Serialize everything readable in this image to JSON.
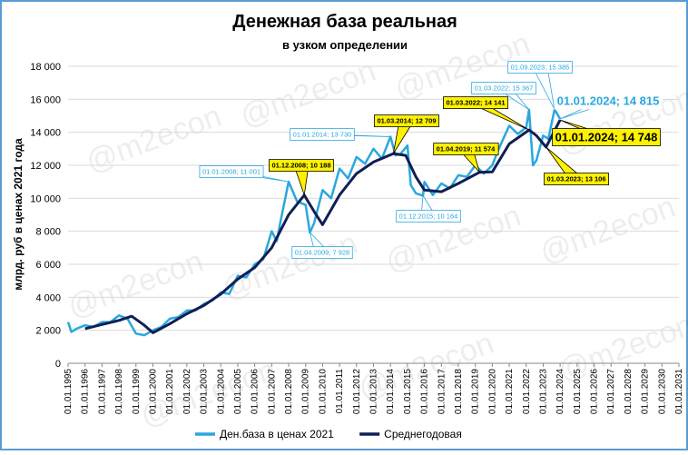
{
  "chart_data": {
    "type": "line",
    "title": "Денежная база реальная",
    "subtitle": "в узком определении",
    "y_label": "млрд. руб  в ценах 2021 года",
    "watermark": "@m2econ",
    "xlim": [
      1995,
      2031
    ],
    "ylim": [
      0,
      18000
    ],
    "xticks": [
      {
        "value": 1995,
        "label": "01.01.1995"
      },
      {
        "value": 1996,
        "label": "01.01.1996"
      },
      {
        "value": 1997,
        "label": "01.01.1997"
      },
      {
        "value": 1998,
        "label": "01.01.1998"
      },
      {
        "value": 1999,
        "label": "01.01.1999"
      },
      {
        "value": 2000,
        "label": "01.01.2000"
      },
      {
        "value": 2001,
        "label": "01.01.2001"
      },
      {
        "value": 2002,
        "label": "01.01.2002"
      },
      {
        "value": 2003,
        "label": "01.01.2003"
      },
      {
        "value": 2004,
        "label": "01.01.2004"
      },
      {
        "value": 2005,
        "label": "01.01.2005"
      },
      {
        "value": 2006,
        "label": "01.01.2006"
      },
      {
        "value": 2007,
        "label": "01.01.2007"
      },
      {
        "value": 2008,
        "label": "01.01.2008"
      },
      {
        "value": 2009,
        "label": "01.01.2009"
      },
      {
        "value": 2010,
        "label": "01.01.2010"
      },
      {
        "value": 2011,
        "label": "01.01.2011"
      },
      {
        "value": 2012,
        "label": "01.01.2012"
      },
      {
        "value": 2013,
        "label": "01.01.2013"
      },
      {
        "value": 2014,
        "label": "01.01.2014"
      },
      {
        "value": 2015,
        "label": "01.01.2015"
      },
      {
        "value": 2016,
        "label": "01.01.2016"
      },
      {
        "value": 2017,
        "label": "01.01.2017"
      },
      {
        "value": 2018,
        "label": "01.01.2018"
      },
      {
        "value": 2019,
        "label": "01.01.2019"
      },
      {
        "value": 2020,
        "label": "01.01.2020"
      },
      {
        "value": 2021,
        "label": "01.01.2021"
      },
      {
        "value": 2022,
        "label": "01.01.2022"
      },
      {
        "value": 2023,
        "label": "01.01.2023"
      },
      {
        "value": 2024,
        "label": "01.01.2024"
      },
      {
        "value": 2025,
        "label": "01.01.2025"
      },
      {
        "value": 2026,
        "label": "01.01.2026"
      },
      {
        "value": 2027,
        "label": "01.01.2027"
      },
      {
        "value": 2028,
        "label": "01.01.2028"
      },
      {
        "value": 2029,
        "label": "01.01.2029"
      },
      {
        "value": 2030,
        "label": "01.01.2030"
      },
      {
        "value": 2031,
        "label": "01.01.2031"
      }
    ],
    "yticks": [
      0,
      {
        "value": 2000,
        "label": "2 000"
      },
      {
        "value": 4000,
        "label": "4 000"
      },
      {
        "value": 6000,
        "label": "6 000"
      },
      {
        "value": 8000,
        "label": "8 000"
      },
      {
        "value": 10000,
        "label": "10 000"
      },
      {
        "value": 12000,
        "label": "12 000"
      },
      {
        "value": 14000,
        "label": "14 000"
      },
      {
        "value": 16000,
        "label": "16 000"
      },
      {
        "value": 18000,
        "label": "18 000"
      }
    ],
    "grid": true,
    "series": [
      {
        "name": "Ден.база в ценах 2021",
        "color": "#2aa7de",
        "x": [
          1995.0,
          1995.2,
          1995.5,
          1996.0,
          1996.5,
          1997.0,
          1997.5,
          1998.0,
          1998.5,
          1999.0,
          1999.5,
          2000.0,
          2000.5,
          2001.0,
          2001.5,
          2002.0,
          2002.5,
          2003.0,
          2003.5,
          2004.0,
          2004.5,
          2005.0,
          2005.5,
          2006.0,
          2006.5,
          2007.0,
          2007.3,
          2007.5,
          2008.0,
          2008.5,
          2009.0,
          2009.25,
          2009.5,
          2010.0,
          2010.5,
          2011.0,
          2011.5,
          2012.0,
          2012.5,
          2013.0,
          2013.5,
          2014.0,
          2014.3,
          2014.6,
          2015.0,
          2015.2,
          2015.5,
          2015.92,
          2016.0,
          2016.5,
          2017.0,
          2017.5,
          2018.0,
          2018.5,
          2019.0,
          2019.5,
          2020.0,
          2020.3,
          2020.6,
          2021.0,
          2021.5,
          2022.0,
          2022.17,
          2022.4,
          2022.6,
          2023.0,
          2023.3,
          2023.67,
          2024.0
        ],
        "values": [
          2500,
          1900,
          2100,
          2300,
          2200,
          2500,
          2500,
          2900,
          2700,
          1800,
          1700,
          2000,
          2200,
          2700,
          2800,
          3200,
          3200,
          3600,
          3800,
          4300,
          4200,
          5300,
          5200,
          6000,
          6300,
          8000,
          7400,
          8500,
          11001,
          9800,
          9600,
          7928,
          8500,
          10500,
          10000,
          11800,
          11200,
          12500,
          12100,
          13000,
          12400,
          13730,
          12600,
          12700,
          13200,
          10800,
          10300,
          10164,
          11000,
          10200,
          10900,
          10600,
          11400,
          11300,
          12000,
          11500,
          12000,
          12800,
          13500,
          14400,
          13900,
          14300,
          15367,
          12000,
          12300,
          13800,
          13600,
          15385,
          14815
        ]
      },
      {
        "name": "Среднегодовая",
        "color": "#0f1f55",
        "x": [
          1996.0,
          1997.0,
          1998.0,
          1998.75,
          1999.5,
          2000.0,
          2001.0,
          2002.0,
          2003.0,
          2004.0,
          2005.0,
          2006.0,
          2007.0,
          2008.0,
          2008.92,
          2009.5,
          2010.0,
          2011.0,
          2012.0,
          2013.0,
          2014.17,
          2014.9,
          2015.5,
          2016.0,
          2017.0,
          2018.0,
          2019.25,
          2020.0,
          2021.0,
          2022.17,
          2022.6,
          2023.17,
          2024.0
        ],
        "values": [
          2100,
          2350,
          2600,
          2850,
          2300,
          1850,
          2400,
          3000,
          3500,
          4200,
          5100,
          5800,
          7000,
          9000,
          10188,
          9200,
          8400,
          10200,
          11500,
          12200,
          12709,
          12600,
          11300,
          10500,
          10400,
          10900,
          11574,
          11600,
          13300,
          14141,
          13800,
          13106,
          14748
        ]
      }
    ],
    "annotations": [
      {
        "text": "01.01.2008; 11 001",
        "x": 2008.0,
        "y": 11001,
        "color": "#ffffff"
      },
      {
        "text": "01.04.2009; 7 928",
        "x": 2009.25,
        "y": 7928,
        "color": "#ffffff"
      },
      {
        "text": "01.01.2014; 13 730",
        "x": 2014.0,
        "y": 13730,
        "color": "#ffffff"
      },
      {
        "text": "01.12.2015; 10 164",
        "x": 2015.92,
        "y": 10164,
        "color": "#ffffff"
      },
      {
        "text": "01.03.2022; 15 367",
        "x": 2022.17,
        "y": 15367,
        "color": "#ffffff"
      },
      {
        "text": "01.09.2023; 15 385",
        "x": 2023.67,
        "y": 15385,
        "color": "#ffffff"
      },
      {
        "text": "01.01.2024; 14 815",
        "x": 2024.0,
        "y": 14815,
        "color": "#ffffff"
      },
      {
        "text": "01.12.2008;  10 188",
        "x": 2008.92,
        "y": 10188,
        "color": "#fff200"
      },
      {
        "text": "01.03.2014;  12 709",
        "x": 2014.17,
        "y": 12709,
        "color": "#fff200"
      },
      {
        "text": "01.03.2022;  14 141",
        "x": 2022.17,
        "y": 14141,
        "color": "#fff200"
      },
      {
        "text": "01.04.2019;  11 574",
        "x": 2019.25,
        "y": 11574,
        "color": "#fff200"
      },
      {
        "text": "01.03.2023;  13 106",
        "x": 2023.17,
        "y": 13106,
        "color": "#fff200"
      },
      {
        "text": "01.01.2024;  14 748",
        "x": 2024.0,
        "y": 14748,
        "color": "#fff200"
      }
    ]
  }
}
